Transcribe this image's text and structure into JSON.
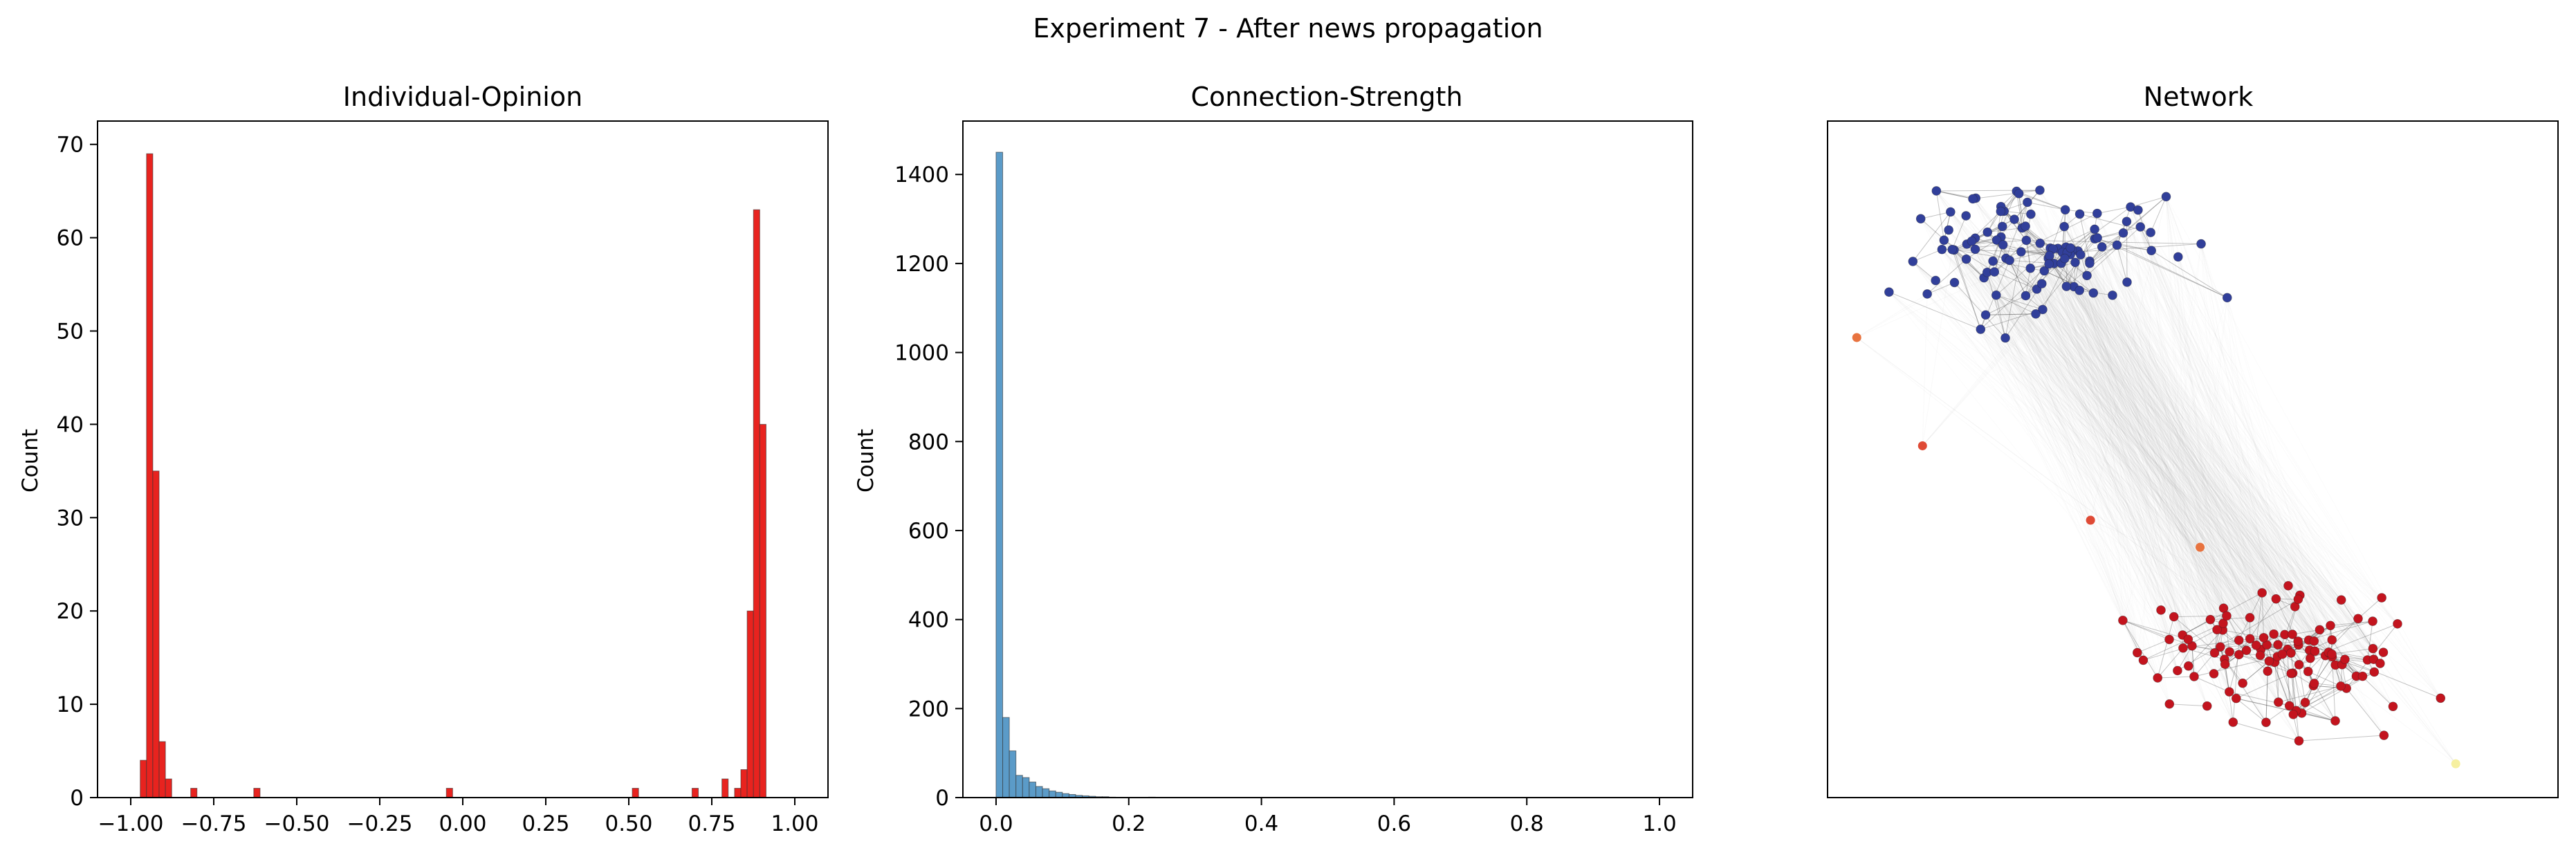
{
  "figure": {
    "title": "Experiment 7 - After news propagation"
  },
  "chart_data": [
    {
      "type": "bar",
      "title": "Individual-Opinion",
      "xlabel": "",
      "ylabel": "Count",
      "xlim": [
        -1.1,
        1.1
      ],
      "ylim": [
        0,
        72.5
      ],
      "xticks": [
        -1.0,
        -0.75,
        -0.5,
        -0.25,
        0.0,
        0.25,
        0.5,
        0.75,
        1.0
      ],
      "xtick_labels": [
        "−1.00",
        "−0.75",
        "−0.50",
        "−0.25",
        "0.00",
        "0.25",
        "0.50",
        "0.75",
        "1.00"
      ],
      "yticks": [
        0,
        10,
        20,
        30,
        40,
        50,
        60,
        70
      ],
      "ytick_labels": [
        "0",
        "10",
        "20",
        "30",
        "40",
        "50",
        "60",
        "70"
      ],
      "bin_width": 0.019,
      "bar_color": "#e8231f",
      "x": [
        -0.962,
        -0.943,
        -0.924,
        -0.905,
        -0.886,
        -0.81,
        -0.62,
        -0.04,
        0.52,
        0.7,
        0.79,
        0.828,
        0.847,
        0.866,
        0.885,
        0.904
      ],
      "values": [
        4,
        69,
        35,
        6,
        2,
        1,
        1,
        1,
        1,
        1,
        2,
        1,
        3,
        20,
        63,
        40
      ],
      "grid": false
    },
    {
      "type": "bar",
      "title": "Connection-Strength",
      "xlabel": "",
      "ylabel": "Count",
      "xlim": [
        -0.05,
        1.05
      ],
      "ylim": [
        0,
        1520
      ],
      "xticks": [
        0.0,
        0.2,
        0.4,
        0.6,
        0.8,
        1.0
      ],
      "xtick_labels": [
        "0.0",
        "0.2",
        "0.4",
        "0.6",
        "0.8",
        "1.0"
      ],
      "yticks": [
        0,
        200,
        400,
        600,
        800,
        1000,
        1200,
        1400
      ],
      "ytick_labels": [
        "0",
        "200",
        "400",
        "600",
        "800",
        "1000",
        "1200",
        "1400"
      ],
      "bin_width": 0.01,
      "bar_color": "#5b9bc8",
      "x": [
        0.005,
        0.015,
        0.025,
        0.035,
        0.045,
        0.055,
        0.065,
        0.075,
        0.085,
        0.095,
        0.105,
        0.115,
        0.125,
        0.135,
        0.145,
        0.155,
        0.165,
        0.175,
        0.235
      ],
      "values": [
        1450,
        180,
        105,
        50,
        45,
        35,
        25,
        20,
        15,
        12,
        9,
        7,
        5,
        4,
        3,
        2,
        2,
        1,
        1
      ],
      "grid": false
    },
    {
      "type": "scatter",
      "title": "Network",
      "xlim": [
        0,
        1
      ],
      "ylim": [
        0,
        1
      ],
      "axes_visible": false,
      "node_colors": {
        "negative": "#313f9a",
        "positive": "#c3141e",
        "neutral_orange": "#e8733f",
        "neutral_red": "#df4a35",
        "pale": "#f6f0a0"
      },
      "edge_color": "#9a9a9a",
      "clusters": [
        {
          "name": "negative",
          "center": [
            0.29,
            0.81
          ],
          "spread": [
            0.15,
            0.085
          ],
          "count": 104,
          "seed": 7
        },
        {
          "name": "positive",
          "center": [
            0.62,
            0.21
          ],
          "spread": [
            0.17,
            0.09
          ],
          "count": 110,
          "seed": 13
        }
      ],
      "outliers": [
        {
          "x": 0.04,
          "y": 0.68,
          "color": "neutral_orange"
        },
        {
          "x": 0.13,
          "y": 0.52,
          "color": "neutral_red"
        },
        {
          "x": 0.36,
          "y": 0.41,
          "color": "neutral_red"
        },
        {
          "x": 0.51,
          "y": 0.37,
          "color": "neutral_orange"
        },
        {
          "x": 0.86,
          "y": 0.05,
          "color": "pale"
        }
      ]
    }
  ]
}
